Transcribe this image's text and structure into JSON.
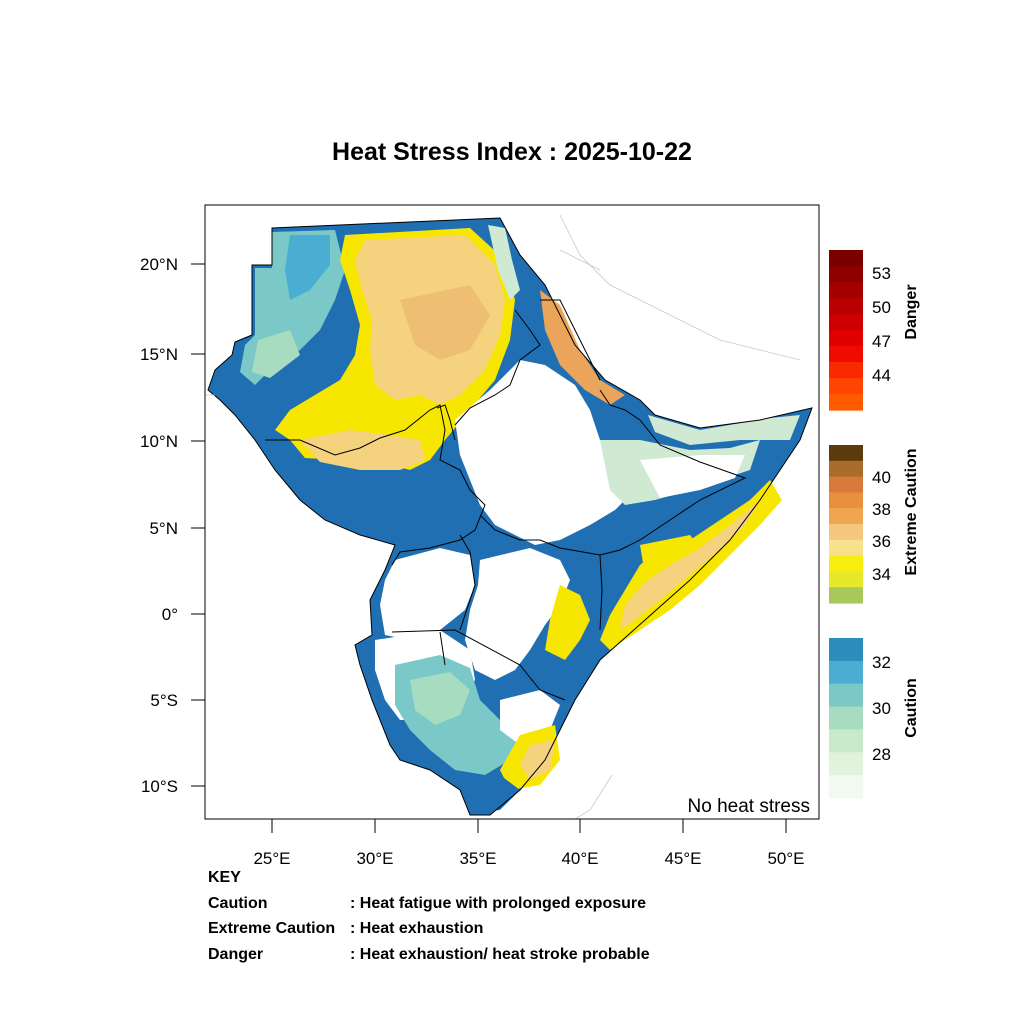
{
  "title": "Heat Stress Index : 2025-10-22",
  "axes": {
    "lat_ticks": [
      "20°N",
      "15°N",
      "10°N",
      "5°N",
      "0°",
      "5°S",
      "10°S"
    ],
    "lon_ticks": [
      "25°E",
      "30°E",
      "35°E",
      "40°E",
      "45°E",
      "50°E"
    ]
  },
  "map_note": "No heat stress",
  "legend": {
    "danger": {
      "title": "Danger",
      "ticks": [
        "53",
        "50",
        "47",
        "44"
      ],
      "colors": [
        "#7a0000",
        "#8e0000",
        "#a30000",
        "#b80000",
        "#cc0000",
        "#e00000",
        "#f00a00",
        "#fa2a00",
        "#ff4500",
        "#ff5a00"
      ]
    },
    "extreme": {
      "title": "Extreme Caution",
      "ticks": [
        "40",
        "38",
        "36",
        "34"
      ],
      "colors": [
        "#5c3a0b",
        "#a86d2a",
        "#d97a3a",
        "#e8903e",
        "#f0a651",
        "#f5c77e",
        "#f9e08c",
        "#f7ed10",
        "#e8e82a",
        "#a9c85a"
      ]
    },
    "caution": {
      "title": "Caution",
      "ticks": [
        "32",
        "30",
        "28"
      ],
      "colors": [
        "#2b8cbe",
        "#4aaed2",
        "#7bc8c8",
        "#a8dcc0",
        "#c9eac8",
        "#e1f3dc",
        "#f1faee"
      ]
    }
  },
  "key": {
    "heading": "KEY",
    "rows": [
      {
        "term": "Caution",
        "desc": ": Heat fatigue with prolonged exposure"
      },
      {
        "term": "Extreme Caution",
        "desc": ": Heat exhaustion"
      },
      {
        "term": "Danger",
        "desc": ": Heat exhaustion/ heat stroke probable"
      }
    ]
  },
  "map_colors": {
    "no_stress": "#ffffff",
    "caution_light": "#cfe9d2",
    "caution_mid": "#7bc8c8",
    "caution_dark": "#1f6fb2",
    "extreme_yellow": "#f7e600",
    "extreme_tan": "#f5d27e",
    "extreme_orange": "#eba55a"
  }
}
